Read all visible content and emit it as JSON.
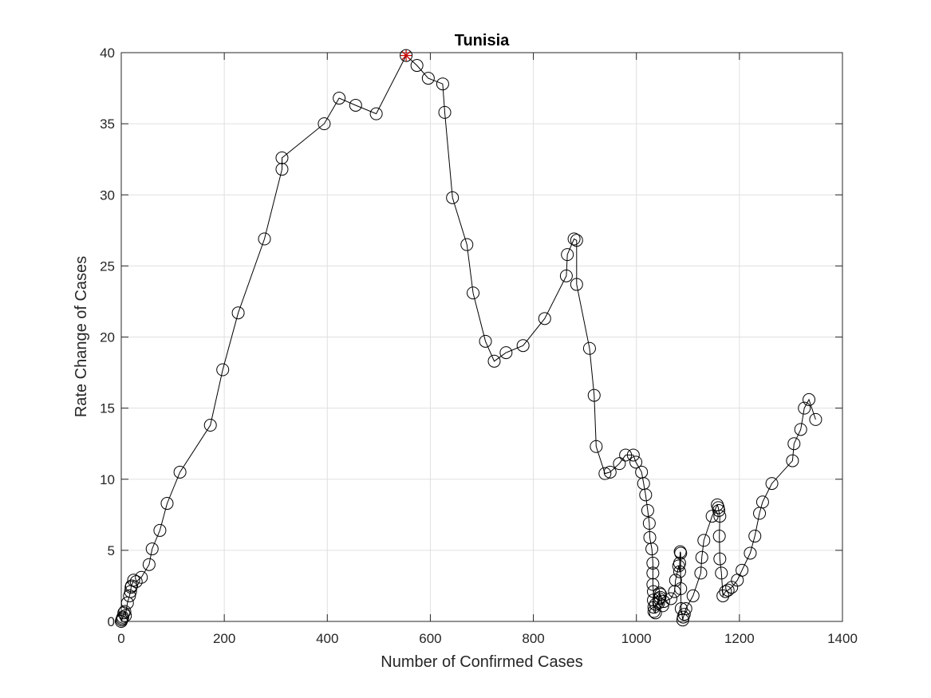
{
  "chart_data": {
    "type": "line",
    "title": "Tunisia",
    "xlabel": "Number of Confirmed Cases",
    "ylabel": "Rate Change of Cases",
    "xlim": [
      0,
      1400
    ],
    "ylim": [
      0,
      40
    ],
    "xticks": [
      0,
      200,
      400,
      600,
      800,
      1000,
      1200,
      1400
    ],
    "yticks": [
      0,
      5,
      10,
      15,
      20,
      25,
      30,
      35,
      40
    ],
    "xtick_labels": [
      "0",
      "200",
      "400",
      "600",
      "800",
      "1000",
      "1200",
      "1400"
    ],
    "ytick_labels": [
      "0",
      "5",
      "10",
      "15",
      "20",
      "25",
      "30",
      "35",
      "40"
    ],
    "grid": true,
    "marker": "open-circle",
    "line_color": "#000000",
    "highlight_color": "#cc0000",
    "series": [
      {
        "x": [
          0,
          1,
          2,
          3,
          5,
          7,
          8,
          12,
          16,
          18,
          19,
          20,
          24,
          29,
          39,
          54,
          60,
          75,
          89,
          114,
          173,
          197,
          227,
          278,
          312,
          312,
          394,
          423,
          455,
          495,
          553,
          574,
          596,
          624,
          628,
          643,
          671,
          683,
          707,
          724,
          747,
          780,
          822,
          864,
          866,
          879,
          884,
          884,
          909,
          918,
          922,
          939,
          949,
          967,
          979,
          994,
          999,
          1010,
          1014,
          1018,
          1022,
          1025,
          1026,
          1030,
          1032,
          1032,
          1032,
          1033,
          1033,
          1034,
          1034,
          1037,
          1037,
          1043,
          1044,
          1045,
          1046,
          1047,
          1051,
          1053,
          1067,
          1074,
          1076,
          1082,
          1084,
          1084,
          1085,
          1086,
          1086,
          1087,
          1090,
          1091,
          1093,
          1096,
          1110,
          1125,
          1127,
          1131,
          1147,
          1157,
          1159,
          1160,
          1162,
          1161,
          1162,
          1165,
          1168,
          1173,
          1178,
          1185,
          1196,
          1205,
          1221,
          1230,
          1239,
          1245,
          1263,
          1303,
          1306,
          1319,
          1326,
          1335,
          1348
        ],
        "y": [
          0.0,
          0.1,
          0.2,
          0.3,
          0.6,
          0.7,
          0.4,
          1.3,
          1.8,
          2.1,
          2.4,
          2.5,
          2.9,
          2.8,
          3.1,
          4.0,
          5.1,
          6.4,
          8.3,
          10.5,
          13.8,
          17.7,
          21.7,
          26.9,
          31.8,
          32.6,
          35.0,
          36.8,
          36.3,
          35.7,
          39.8,
          39.1,
          38.2,
          37.8,
          35.8,
          29.8,
          26.5,
          23.1,
          19.7,
          18.3,
          18.9,
          19.4,
          21.3,
          24.3,
          25.8,
          26.9,
          26.8,
          23.7,
          19.2,
          15.9,
          12.3,
          10.4,
          10.5,
          11.1,
          11.7,
          11.7,
          11.2,
          10.5,
          9.7,
          8.9,
          7.8,
          6.9,
          5.9,
          5.1,
          4.1,
          3.4,
          2.6,
          2.1,
          1.5,
          1.0,
          0.7,
          0.6,
          1.2,
          1.3,
          1.6,
          2.0,
          1.7,
          1.9,
          1.1,
          1.4,
          1.6,
          2.1,
          2.9,
          3.9,
          3.5,
          4.1,
          4.9,
          4.8,
          2.3,
          0.9,
          0.1,
          0.3,
          0.5,
          0.9,
          1.8,
          3.4,
          4.5,
          5.7,
          7.4,
          8.2,
          8.0,
          7.8,
          7.4,
          6.0,
          4.4,
          3.4,
          1.8,
          2.1,
          2.2,
          2.4,
          2.9,
          3.6,
          4.8,
          6.0,
          7.6,
          8.4,
          9.7,
          11.3,
          12.5,
          13.5,
          15.0,
          15.6,
          14.2
        ]
      }
    ],
    "peak_marker": {
      "x": 553,
      "y": 39.8
    }
  }
}
